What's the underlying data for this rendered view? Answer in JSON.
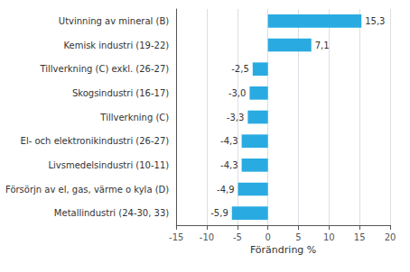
{
  "chart_data": {
    "type": "bar",
    "orientation": "horizontal",
    "categories": [
      "Metallindustri (24-30, 33)",
      "Försörjn av el, gas, värme o kyla (D)",
      "Livsmedelsindustri (10-11)",
      "El- och elektronikindustri (26-27)",
      "Tillverkning (C)",
      "Skogsindustri (16-17)",
      "Tillverkning (C) exkl. (26-27)",
      "Kemisk industri (19-22)",
      "Utvinning av mineral (B)"
    ],
    "values": [
      -5.9,
      -4.9,
      -4.3,
      -4.3,
      -3.3,
      -3.0,
      -2.5,
      7.1,
      15.3
    ],
    "value_labels": [
      "-5,9",
      "-4,9",
      "-4,3",
      "-4,3",
      "-3,3",
      "-3,0",
      "-2,5",
      "7,1",
      "15,3"
    ],
    "data_labels": true,
    "color": "#29abe2",
    "xlabel": "Förändring %",
    "xlim": [
      -15,
      20
    ],
    "xticks": [
      -15,
      -10,
      -5,
      0,
      5,
      10,
      15,
      20
    ],
    "grid": true
  }
}
